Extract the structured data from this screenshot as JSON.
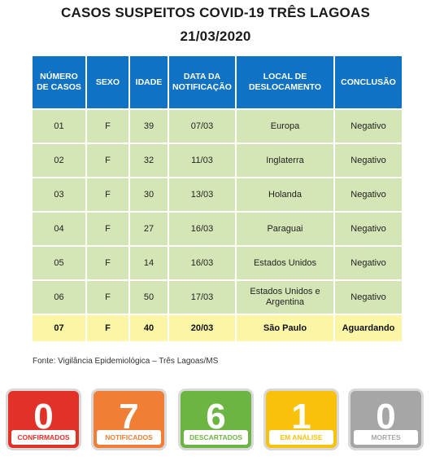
{
  "header": {
    "title": "CASOS SUSPEITOS COVID-19 TRÊS LAGOAS",
    "date": "21/03/2020"
  },
  "table": {
    "columns": [
      "NÚMERO DE CASOS",
      "SEXO",
      "IDADE",
      "DATA DA NOTIFICAÇÃO",
      "LOCAL DE DESLOCAMENTO",
      "CONCLUSÃO"
    ],
    "rows": [
      [
        "01",
        "F",
        "39",
        "07/03",
        "Europa",
        "Negativo"
      ],
      [
        "02",
        "F",
        "32",
        "11/03",
        "Inglaterra",
        "Negativo"
      ],
      [
        "03",
        "F",
        "30",
        "13/03",
        "Holanda",
        "Negativo"
      ],
      [
        "04",
        "F",
        "27",
        "16/03",
        "Paraguai",
        "Negativo"
      ],
      [
        "05",
        "F",
        "14",
        "16/03",
        "Estados Unidos",
        "Negativo"
      ],
      [
        "06",
        "F",
        "50",
        "17/03",
        "Estados Unidos e Argentina",
        "Negativo"
      ],
      [
        "07",
        "F",
        "40",
        "20/03",
        "São Paulo",
        "Aguardando"
      ]
    ]
  },
  "source": "Fonte: Vigilância Epidemiológica – Três Lagoas/MS",
  "summary": [
    {
      "value": "0",
      "label": "CONFIRMADOS",
      "color": "#e23228"
    },
    {
      "value": "7",
      "label": "NOTIFICADOS",
      "color": "#f07f35"
    },
    {
      "value": "6",
      "label": "DESCARTADOS",
      "color": "#6cb543"
    },
    {
      "value": "1",
      "label": "EM ANÁLISE",
      "color": "#f9c20a"
    },
    {
      "value": "0",
      "label": "MORTES",
      "color": "#a6a6a6"
    }
  ]
}
